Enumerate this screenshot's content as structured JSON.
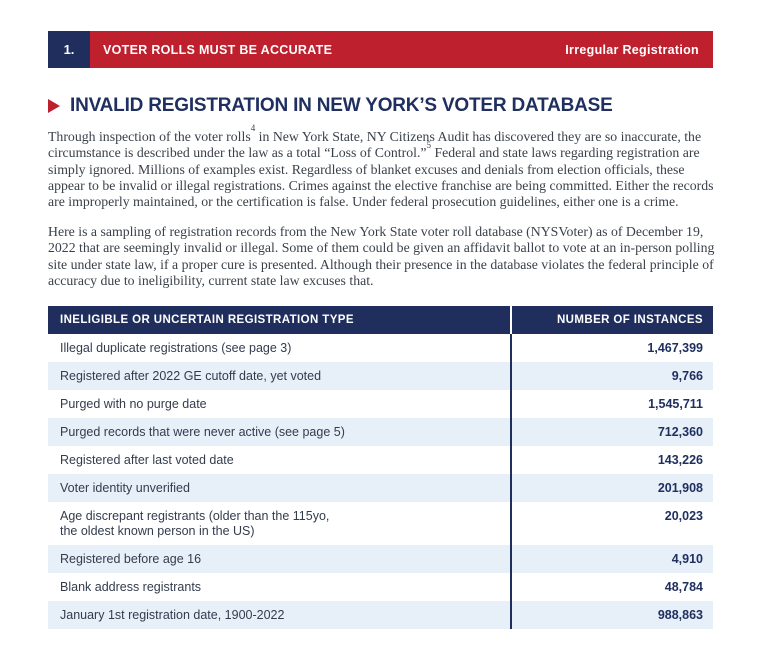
{
  "header": {
    "number": "1.",
    "title": "VOTER ROLLS MUST BE ACCURATE",
    "right_label": "Irregular Registration"
  },
  "section": {
    "title": "INVALID REGISTRATION IN NEW YORK’S VOTER DATABASE",
    "p1": {
      "part1": "Through inspection of the voter rolls",
      "sup1": "4",
      "part2": " in New York State, NY Citizens Audit has discovered they are so inaccurate, the circumstance is described under the law as a total “Loss of Control.”",
      "sup2": "5",
      "part3": " Federal and state laws regarding registration are simply ignored. Millions of examples exist. Regardless of blanket excuses and denials from election officials, these appear to be invalid or illegal registrations. Crimes against the elective franchise are being committed. Either the records are improperly maintained, or the certification is false. Under federal prosecution guidelines, either one is a crime."
    },
    "p2": "Here is a sampling of registration records from the New York State voter roll database (NYSVoter) as of December 19, 2022 that are seemingly invalid or illegal. Some of them could be given an affidavit ballot to vote at an in-person polling site under state law, if a proper cure is presented. Although their presence in the database violates the federal principle of accuracy due to ineligibility, current state law excuses that."
  },
  "table": {
    "col_type": "INELIGIBLE OR UNCERTAIN REGISTRATION TYPE",
    "col_count": "NUMBER OF INSTANCES",
    "rows": [
      {
        "type": "Illegal duplicate registrations (see page 3)",
        "count": "1,467,399"
      },
      {
        "type": "Registered after 2022 GE cutoff date, yet voted",
        "count": "9,766"
      },
      {
        "type": "Purged with no purge date",
        "count": "1,545,711"
      },
      {
        "type": "Purged records that were never active (see page 5)",
        "count": "712,360"
      },
      {
        "type": "Registered after last voted date",
        "count": "143,226"
      },
      {
        "type": "Voter identity unverified",
        "count": "201,908"
      },
      {
        "type": "Age discrepant registrants (older than the 115yo,\nthe oldest known person in the US)",
        "count": "20,023"
      },
      {
        "type": "Registered before age 16",
        "count": "4,910"
      },
      {
        "type": "Blank address registrants",
        "count": "48,784"
      },
      {
        "type": "January 1st registration date, 1900-2022",
        "count": "988,863"
      }
    ]
  },
  "colors": {
    "navy": "#1f2e5c",
    "accent_red": "#be202e",
    "row_alt_blue": "#e7f0f9",
    "body_text": "#3a414b"
  }
}
